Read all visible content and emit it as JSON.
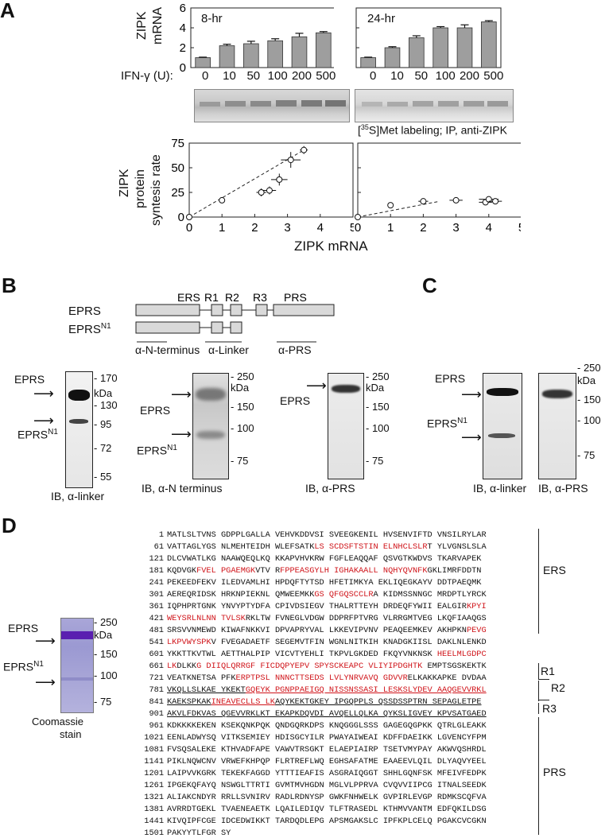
{
  "panels": {
    "A": "A",
    "B": "B",
    "C": "C",
    "D": "D"
  },
  "panelA": {
    "ylabel_mrna_1": "ZIPK",
    "ylabel_mrna_2": "mRNA",
    "ylabel_rate_1": "ZIPK",
    "ylabel_rate_2": "protein",
    "ylabel_rate_3": "syntesis rate",
    "ifn_label": "IFN-γ (U):",
    "doses": [
      "0",
      "10",
      "50",
      "100",
      "200",
      "500"
    ],
    "label_8hr": "8-hr",
    "label_24hr": "24-hr",
    "labeling_caption_pre": "[",
    "labeling_caption_sup": "35",
    "labeling_caption_post": "S]Met labeling; IP, anti-ZIPK",
    "xlabel": "ZIPK mRNA"
  },
  "chart_data": [
    {
      "type": "bar",
      "title": "8-hr",
      "categories": [
        "0",
        "10",
        "50",
        "100",
        "200",
        "500"
      ],
      "values": [
        1.0,
        2.2,
        2.4,
        2.7,
        3.1,
        3.5
      ],
      "errors": [
        0.05,
        0.15,
        0.25,
        0.2,
        0.35,
        0.12
      ],
      "ylabel": "ZIPK mRNA",
      "ylim": [
        0,
        6
      ],
      "yticks": [
        "0",
        "2",
        "4",
        "6"
      ]
    },
    {
      "type": "bar",
      "title": "24-hr",
      "categories": [
        "0",
        "10",
        "50",
        "100",
        "200",
        "500"
      ],
      "values": [
        1.0,
        2.0,
        3.0,
        4.0,
        4.0,
        4.6
      ],
      "errors": [
        0.05,
        0.1,
        0.2,
        0.12,
        0.3,
        0.12
      ],
      "ylim": [
        0,
        6
      ],
      "yticks": [
        "0",
        "2",
        "4",
        "6"
      ]
    },
    {
      "type": "scatter",
      "x": [
        0,
        1,
        2.2,
        2.45,
        2.75,
        3.1,
        3.5
      ],
      "y": [
        0,
        17,
        25,
        27,
        38,
        58,
        68
      ],
      "xerr": [
        0,
        0,
        0.15,
        0.2,
        0.25,
        0.3,
        0.12
      ],
      "yerr": [
        0,
        0,
        4,
        4,
        6,
        8,
        4
      ],
      "trend": [
        [
          0,
          0
        ],
        [
          3.5,
          68
        ]
      ],
      "xlabel": "ZIPK mRNA",
      "ylabel": "ZIPK protein syntesis rate",
      "xlim": [
        0,
        5
      ],
      "ylim": [
        0,
        75
      ],
      "xticks": [
        "0",
        "1",
        "2",
        "3",
        "4",
        "5"
      ],
      "yticks": [
        "0",
        "25",
        "50",
        "75"
      ]
    },
    {
      "type": "scatter",
      "x": [
        0,
        1,
        2.0,
        3.0,
        3.9,
        4.0,
        4.2
      ],
      "y": [
        0,
        12,
        16,
        17,
        15,
        18,
        16
      ],
      "xerr": [
        0,
        0,
        0.15,
        0.2,
        0.2,
        0.3,
        0.2
      ],
      "yerr": [
        0,
        0,
        2,
        2,
        3,
        2,
        2
      ],
      "trend": [
        [
          0,
          0
        ],
        [
          2.5,
          16
        ]
      ],
      "xlim": [
        0,
        5
      ],
      "ylim": [
        0,
        75
      ],
      "xticks": [
        "0",
        "1",
        "2",
        "3",
        "4",
        "5"
      ]
    }
  ],
  "panelB": {
    "domains": [
      "ERS",
      "R1",
      "R2",
      "R3",
      "PRS"
    ],
    "eprs": "EPRS",
    "eprs_n1_base": "EPRS",
    "eprs_n1_sup": "N1",
    "ab_n_terminus": "α-N-terminus",
    "ab_linker": "α-Linker",
    "ab_prs": "α-PRS",
    "blot1_markers": [
      "170",
      "kDa",
      "130",
      "95",
      "72",
      "55"
    ],
    "blot1_caption": "IB, α-linker",
    "blot2_markers": [
      "250",
      "kDa",
      "150",
      "100",
      "75"
    ],
    "blot2_caption": "IB, α-N terminus",
    "blot3_markers": [
      "250",
      "kDa",
      "150",
      "100",
      "75"
    ],
    "blot3_caption": "IB, α-PRS"
  },
  "panelC": {
    "eprs": "EPRS",
    "eprs_n1_base": "EPRS",
    "eprs_n1_sup": "N1",
    "markers": [
      "250",
      "kDa",
      "150",
      "100",
      "75"
    ],
    "caption_linker": "IB, α-linker",
    "caption_prs": "IB, α-PRS"
  },
  "panelD": {
    "eprs": "EPRS",
    "eprs_n1_base": "EPRS",
    "eprs_n1_sup": "N1",
    "markers": [
      "250",
      "kDa",
      "150",
      "100",
      "75"
    ],
    "caption_1": "Coomassie",
    "caption_2": "stain",
    "region_labels": [
      "ERS",
      "R1",
      "R2",
      "R3",
      "PRS"
    ],
    "sequence": [
      {
        "n": "1",
        "s": [
          [
            "MATLSLTVNS GDPPLGALLA VEHVKDDVSI SVEEGKENIL HVSENVIFTD VNSILRYLAR",
            ""
          ]
        ]
      },
      {
        "n": "61",
        "s": [
          [
            "VATTAGLYGS NLMEHTEIDH WLEFSATK",
            ""
          ],
          [
            "LS SCDSFTSTIN ELNHCLSLR",
            "red"
          ],
          [
            "T YLVGNSLSLA",
            ""
          ]
        ]
      },
      {
        "n": "121",
        "s": [
          [
            "DLCVWATLKG NAAWQEQLKQ KKAPVHVKRW FGFLEAQQAF QSVGTKWDVS TKARVAPEK",
            ""
          ]
        ]
      },
      {
        "n": "181",
        "s": [
          [
            "KQDVGK",
            ""
          ],
          [
            "FVEL PGAEMGK",
            "red"
          ],
          [
            "VTV R",
            ""
          ],
          [
            "FPPEASGYLH IGHAKAALL NQHYQVNFK",
            "red"
          ],
          [
            "GKLIMRFDDTN",
            ""
          ]
        ]
      },
      {
        "n": "241",
        "s": [
          [
            "PEKEEDFEKV ILEDVAMLHI HPDQFTYTSD HFETIMKYA EKLIQEGKAYV DDTPAEQMK",
            ""
          ]
        ]
      },
      {
        "n": "301",
        "s": [
          [
            "AEREQRIDSK HRKNPIEKNL QMWEEMKK",
            ""
          ],
          [
            "GS QFGQSCCLR",
            "red"
          ],
          [
            "A KIDMSSNNGC MRDPTLYRCK",
            ""
          ]
        ]
      },
      {
        "n": "361",
        "s": [
          [
            "IQPHPRTGNK YNVYPTYDFA CPIVDSIEGV THALRTTEYH DRDEQFYWII EALGIR",
            ""
          ],
          [
            "KPYI",
            "red"
          ]
        ]
      },
      {
        "n": "421",
        "s": [
          [
            "WEYSRLNLNN TVLSK",
            "red"
          ],
          [
            "RKLTW FVNEGLVDGW DDPRFPTVRG VLRRGMTVEG LKQFIAAQGS",
            ""
          ]
        ]
      },
      {
        "n": "481",
        "s": [
          [
            "SRSVVNMEWD KIWAFNKKVI DPVAPRYVAL LKKEVIPVNV PEAQEEMKEV AKHPKN",
            ""
          ],
          [
            "PEVG",
            "red"
          ]
        ]
      },
      {
        "n": "541",
        "s": [
          [
            "LKPVWYSPK",
            "red"
          ],
          [
            "V FVEGADAETF SEGEMVTFIN WGNLNITKIH KNADGKIISL DAKLNLENKD",
            ""
          ]
        ]
      },
      {
        "n": "601",
        "s": [
          [
            "YKKTTKVTWL AETTHALPIP VICVTYEHLI TKPVLGKDED FKQYVNKNSK ",
            ""
          ],
          [
            "HEELMLGDPC",
            "red"
          ]
        ]
      },
      {
        "n": "661",
        "s": [
          [
            "LK",
            "red"
          ],
          [
            "DLKK",
            ""
          ],
          [
            "G DIIQLQRRGF FICDQPYEPV SPYSCKEAPC VLIYIPDGHTK",
            "red"
          ],
          [
            " EMPTSGSKEKTK",
            ""
          ]
        ]
      },
      {
        "n": "721",
        "s": [
          [
            "VEATKNETSA PFK",
            ""
          ],
          [
            "ERPTPSL NNNCTTSEDS LVLYNRVAVQ GDVVR",
            "red"
          ],
          [
            "ELKAKKAPKE DVDAA",
            ""
          ]
        ]
      },
      {
        "n": "781",
        "s": [
          [
            "VKQLLSLKAE YKEKT",
            ""
          ],
          [
            "GQEYK PGNPPAEIGQ NISSNSSASI LESKSLYDEV AAQGEVVRKL",
            "red"
          ]
        ]
      },
      {
        "n": "841",
        "s": [
          [
            "KAEKSPKAK",
            ""
          ],
          [
            "INEAVECLLS LK",
            "red"
          ],
          [
            "AQYKEKTGKEY IPGQPPLS QSSDSSPTRN SEPAGLETPE",
            ""
          ]
        ]
      },
      {
        "n": "901",
        "s": [
          [
            "AKVLFDKVAS QGEVVRKLKT EKAPKDQVDI AVQELLQLKA QYKSLIGVEY KPVSATGAED",
            ""
          ]
        ]
      },
      {
        "n": "961",
        "s": [
          [
            "KDKKKKEKEN KSEKQNKPQK QNDGQRKDPS KNQGGGLSSS GAGEGQGPKK QTRLGLEAKK",
            ""
          ]
        ]
      },
      {
        "n": "1021",
        "s": [
          [
            "EENLADWYSQ VITKSEMIEY HDISGCYILR PWAYAIWEAI KDFFDAEIKK LGVENCYFPM",
            ""
          ]
        ]
      },
      {
        "n": "1081",
        "s": [
          [
            "FVSQSALEKE KTHVADFAPE VAWVTRSGKT ELAEPIAIRP TSETVMYPAY AKWVQSHRDL",
            ""
          ]
        ]
      },
      {
        "n": "1141",
        "s": [
          [
            "PIKLNQWCNV VRWEFKHPQP FLRTREFLWQ EGHSAFATME EAAEEVLQIL DLYAQVYEEL",
            ""
          ]
        ]
      },
      {
        "n": "1201",
        "s": [
          [
            "LAIPVVKGRK TEKEKFAGGD YTTTIEAFIS ASGRAIQGGT SHHLGQNFSK MFEIVFEDPK",
            ""
          ]
        ]
      },
      {
        "n": "1261",
        "s": [
          [
            "IPGEKQFAYQ NSWGLTTRTI GVMTMVHGDN MGLVLPPRVA CVQVVIIPCG ITNALSEEDK",
            ""
          ]
        ]
      },
      {
        "n": "1321",
        "s": [
          [
            "ALIAKCNDYR RRLLSVNIRV RADLRDNYSP GWKFNHWELK GVPIRLEVGP RDMKSCQFVA",
            ""
          ]
        ]
      },
      {
        "n": "1381",
        "s": [
          [
            "AVRRDTGEKL TVAENEAETK LQAILEDIQV TLFTRASEDL KTHMVVANTM EDFQKILDSG",
            ""
          ]
        ]
      },
      {
        "n": "1441",
        "s": [
          [
            "KIVQIPFCGE IDCEDWIKKT TARDQDLEPG APSMGAKSLC IPFKPLCELQ PGAKCVCGKN",
            ""
          ]
        ]
      },
      {
        "n": "1501",
        "s": [
          [
            "PAKYYTLFGR SY",
            ""
          ]
        ]
      }
    ]
  }
}
